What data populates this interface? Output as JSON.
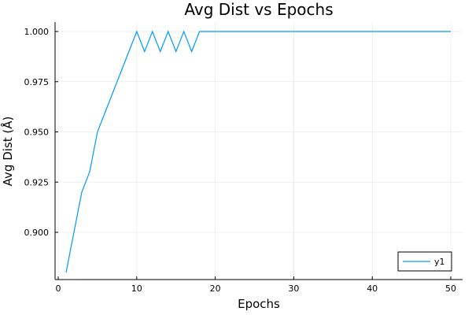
{
  "chart_data": {
    "type": "line",
    "title": "Avg Dist vs Epochs",
    "xlabel": "Epochs",
    "ylabel": "Avg Dist (Å)",
    "xlim": [
      0,
      50
    ],
    "ylim": [
      0.88,
      1.0
    ],
    "xticks": [
      0,
      10,
      20,
      30,
      40,
      50
    ],
    "xtick_labels": [
      "0",
      "10",
      "20",
      "30",
      "40",
      "50"
    ],
    "yticks": [
      0.9,
      0.925,
      0.95,
      0.975,
      1.0
    ],
    "ytick_labels": [
      "0.900",
      "0.925",
      "0.950",
      "0.975",
      "1.000"
    ],
    "grid": true,
    "legend_position": "bottom-right",
    "series": [
      {
        "name": "y1",
        "color": "#009AFA",
        "x": [
          1,
          2,
          3,
          4,
          5,
          6,
          7,
          8,
          9,
          10,
          11,
          12,
          13,
          14,
          15,
          16,
          17,
          18,
          19,
          20,
          21,
          22,
          23,
          24,
          25,
          26,
          27,
          28,
          29,
          30,
          31,
          32,
          33,
          34,
          35,
          36,
          37,
          38,
          39,
          40,
          41,
          42,
          43,
          44,
          45,
          46,
          47,
          48,
          49,
          50
        ],
        "values": [
          0.88,
          0.9,
          0.92,
          0.93,
          0.95,
          0.96,
          0.97,
          0.98,
          0.99,
          1.0,
          0.99,
          1.0,
          0.99,
          1.0,
          0.99,
          1.0,
          0.99,
          1.0,
          1.0,
          1.0,
          1.0,
          1.0,
          1.0,
          1.0,
          1.0,
          1.0,
          1.0,
          1.0,
          1.0,
          1.0,
          1.0,
          1.0,
          1.0,
          1.0,
          1.0,
          1.0,
          1.0,
          1.0,
          1.0,
          1.0,
          1.0,
          1.0,
          1.0,
          1.0,
          1.0,
          1.0,
          1.0,
          1.0,
          1.0,
          1.0
        ]
      }
    ]
  }
}
